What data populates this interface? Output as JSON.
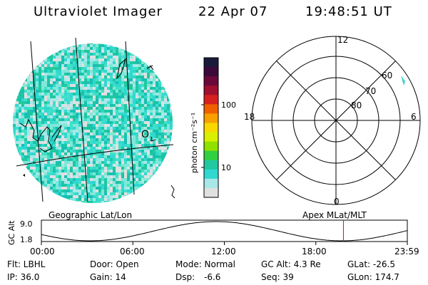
{
  "header": {
    "title": "Ultraviolet Imager",
    "date": "22 Apr 07",
    "time": "19:48:51 UT"
  },
  "colorbar": {
    "label": "photon cm⁻²s⁻¹",
    "ticks": [
      "100",
      "10"
    ],
    "colors": [
      "#1a1a3a",
      "#3b0a3a",
      "#6a0a3a",
      "#a01030",
      "#d82020",
      "#f06000",
      "#f8a000",
      "#f8d800",
      "#d8f000",
      "#90e000",
      "#30d040",
      "#20c8a0",
      "#30d8d0",
      "#a8e8e8",
      "#e0e0e0"
    ]
  },
  "polar_plot": {
    "clock_labels": [
      "12",
      "18",
      "6",
      "0"
    ],
    "lat_labels": [
      "60",
      "70",
      "80"
    ]
  },
  "left_map": {
    "o_label": "O",
    "o_sub": "1"
  },
  "timeline": {
    "left_title": "Geographic Lat/Lon",
    "right_title": "Apex  MLat/MLT",
    "y_axis_label": "GC Alt",
    "y_ticks": [
      "9.0",
      "1.8"
    ],
    "x_ticks": [
      "00:00",
      "06:00",
      "12:00",
      "18:00",
      "23:59"
    ],
    "current_marker_hours": 19.81
  },
  "info": {
    "flt": "Flt: LBHL",
    "ip": "IP: 36.0",
    "door": "Door: Open",
    "gain": "Gain: 14",
    "mode": "Mode: Normal",
    "dsp_label": "Dsp:",
    "dsp_value": "-6.6",
    "gc_alt": "GC Alt: 4.3 Re",
    "seq": "Seq: 39",
    "glat": "GLat: -26.5",
    "glon": "GLon: 174.7"
  }
}
